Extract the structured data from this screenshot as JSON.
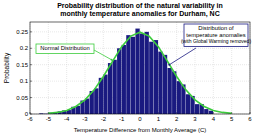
{
  "chart_data": {
    "type": "histogram",
    "title": [
      "Probability distribution of the natural variability in",
      "monthly temperature anomalies for Durham, NC"
    ],
    "x_label": "Temperature Difference from Monthly Average (C)",
    "y_label": "Probability",
    "bins": [
      -5.5,
      -5.25,
      -5,
      -4.75,
      -4.5,
      -4.25,
      -4,
      -3.75,
      -3.5,
      -3.25,
      -3,
      -2.75,
      -2.5,
      -2.25,
      -2,
      -1.75,
      -1.5,
      -1.25,
      -1,
      -0.75,
      -0.5,
      -0.25,
      0,
      0.25,
      0.5,
      0.75,
      1,
      1.25,
      1.5,
      1.75,
      2,
      2.25,
      2.5,
      2.75,
      3,
      3.25,
      3.5,
      3.75,
      4
    ],
    "values": [
      0.002,
      0.001,
      0.004,
      0.003,
      0.008,
      0.011,
      0.012,
      0.022,
      0.025,
      0.041,
      0.047,
      0.07,
      0.078,
      0.11,
      0.12,
      0.155,
      0.165,
      0.2,
      0.21,
      0.24,
      0.235,
      0.26,
      0.245,
      0.25,
      0.22,
      0.225,
      0.19,
      0.18,
      0.14,
      0.13,
      0.1,
      0.09,
      0.06,
      0.055,
      0.03,
      0.03,
      0.015,
      0.01
    ],
    "color": "#1a1a80",
    "series": [
      {
        "type": "line",
        "color": "#3ccc3c",
        "x": [
          -5,
          -4.5,
          -4,
          -3.5,
          -3,
          -2.5,
          -2,
          -1.5,
          -1,
          -0.5,
          0,
          0.5,
          1,
          1.5,
          2,
          2.5,
          3,
          3.5,
          4,
          4.5,
          5
        ],
        "values": [
          0.0019,
          0.0048,
          0.0109,
          0.0228,
          0.0429,
          0.0735,
          0.114,
          0.16,
          0.205,
          0.237,
          0.249,
          0.237,
          0.205,
          0.16,
          0.114,
          0.0735,
          0.0429,
          0.0228,
          0.0109,
          0.0048,
          0.0019
        ]
      }
    ],
    "annotations": [
      {
        "lines": [
          "Normal Distribution"
        ],
        "color": "#3ccc3c"
      },
      {
        "lines": [
          "Distribution of",
          "temperature anomalies",
          "(with Global Warming removed)"
        ],
        "color": "#1a1a80"
      }
    ],
    "xlim": [
      -6,
      6
    ],
    "ylim": [
      0,
      0.28
    ],
    "xticks": [
      -6,
      -5,
      -4,
      -3,
      -2,
      -1,
      0,
      1,
      2,
      3,
      4,
      5,
      6
    ],
    "yticks": [
      0,
      0.05,
      0.1,
      0.15,
      0.2,
      0.25
    ],
    "grid": true
  }
}
